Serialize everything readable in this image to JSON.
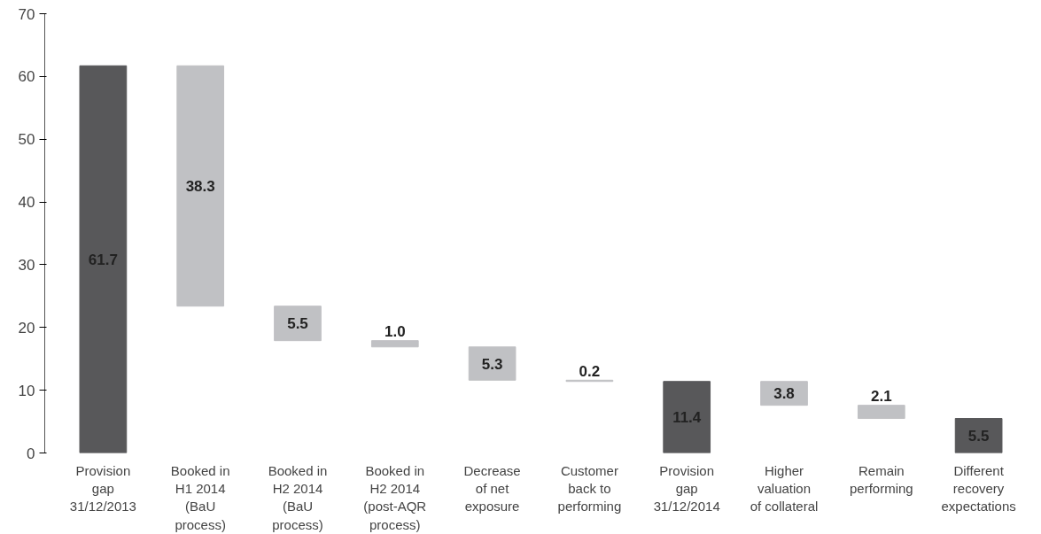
{
  "chart_data": {
    "type": "bar",
    "categories": [
      "Provision\ngap\n31/12/2013",
      "Booked in\nH1 2014\n(BaU\nprocess)",
      "Booked in\nH2 2014\n(BaU\nprocess)",
      "Booked in\nH2 2014\n(post-AQR\nprocess)",
      "Decrease\nof net\nexposure",
      "Customer\nback to\nperforming",
      "Provision\ngap\n31/12/2014",
      "Higher\nvaluation\nof collateral",
      "Remain\nperforming",
      "Different\nrecovery\nexpectations"
    ],
    "values": [
      61.7,
      38.3,
      5.5,
      1.0,
      5.3,
      0.2,
      11.4,
      3.8,
      2.1,
      5.5
    ],
    "base": [
      0,
      23.4,
      17.9,
      16.9,
      11.6,
      11.4,
      0,
      7.6,
      5.5,
      0
    ],
    "colors": [
      "#58585a",
      "#c0c1c4",
      "#c0c1c4",
      "#c0c1c4",
      "#c0c1c4",
      "#c0c1c4",
      "#58585a",
      "#c0c1c4",
      "#c0c1c4",
      "#58585a"
    ],
    "ylim": [
      0,
      70
    ],
    "yticks": [
      0,
      10,
      20,
      30,
      40,
      50,
      60,
      70
    ],
    "value_labels": [
      "61.7",
      "38.3",
      "5.5",
      "1.0",
      "5.3",
      "0.2",
      "11.4",
      "3.8",
      "2.1",
      "5.5"
    ],
    "grid": false
  }
}
